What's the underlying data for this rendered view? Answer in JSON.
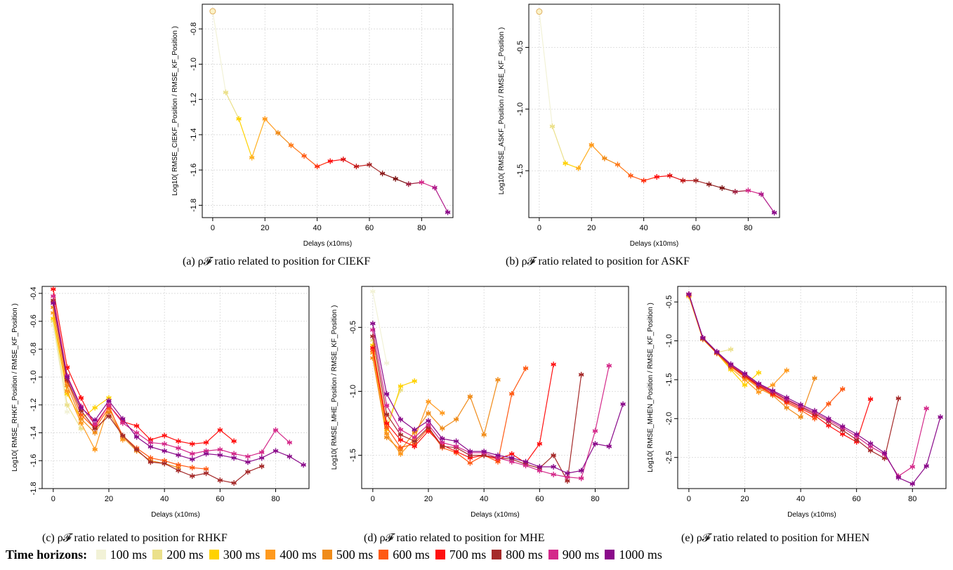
{
  "captions": {
    "a": "(a) ρ𝓕 ratio related to position for CIEKF",
    "b": "(b) ρ𝓕 ratio related to position for ASKF",
    "c": "(c) ρ𝓕 ratio related to position for RHKF",
    "d": "(d) ρ𝓕 ratio related to position for MHE",
    "e": "(e) ρ𝓕 ratio related to position for MHEN"
  },
  "legend": {
    "title": "Time horizons",
    "items": [
      {
        "label": "100 ms",
        "color": "#f2f2d7"
      },
      {
        "label": "200 ms",
        "color": "#ebe08a"
      },
      {
        "label": "300 ms",
        "color": "#ffd200"
      },
      {
        "label": "400 ms",
        "color": "#ff9a1e"
      },
      {
        "label": "500 ms",
        "color": "#f08c1a"
      },
      {
        "label": "600 ms",
        "color": "#ff5a14"
      },
      {
        "label": "700 ms",
        "color": "#ff1010"
      },
      {
        "label": "800 ms",
        "color": "#a52a2a"
      },
      {
        "label": "900 ms",
        "color": "#d42a8a"
      },
      {
        "label": "1000 ms",
        "color": "#8a0a8a"
      }
    ]
  },
  "chart_data": [
    {
      "id": "a",
      "type": "line",
      "xlabel": "Delays (x10ms)",
      "ylabel": "Log10( RMSE_CIEKF_Position / RMSE_KF_Position )",
      "xlim": [
        -4,
        92
      ],
      "ylim": [
        -1.87,
        -0.66
      ],
      "xticks": [
        0,
        20,
        40,
        60,
        80
      ],
      "yticks": [
        -0.8,
        -1.0,
        -1.2,
        -1.4,
        -1.6,
        -1.8
      ],
      "ytick_labels": [
        "-0.8",
        "-1.0",
        "-1.2",
        "-1.4",
        "-1.6",
        "-1.8"
      ],
      "grid": true,
      "gradient": true,
      "x": [
        0,
        5,
        10,
        15,
        20,
        25,
        30,
        35,
        40,
        45,
        50,
        55,
        60,
        65,
        70,
        75,
        80,
        85,
        90
      ],
      "values": [
        -0.7,
        -1.16,
        -1.31,
        -1.53,
        -1.31,
        -1.39,
        -1.46,
        -1.52,
        -1.58,
        -1.55,
        -1.54,
        -1.58,
        -1.57,
        -1.62,
        -1.65,
        -1.68,
        -1.67,
        -1.7,
        -1.84
      ]
    },
    {
      "id": "b",
      "type": "line",
      "xlabel": "Delays (x10ms)",
      "ylabel": "Log10( RMSE_ASKF_Position / RMSE_KF_Position )",
      "xlim": [
        -4,
        92
      ],
      "ylim": [
        -1.88,
        -0.15
      ],
      "xticks": [
        0,
        20,
        40,
        60,
        80
      ],
      "yticks": [
        -0.5,
        -1.0,
        -1.5
      ],
      "ytick_labels": [
        "-0.5",
        "-1.0",
        "-1.5"
      ],
      "grid": true,
      "gradient": true,
      "x": [
        0,
        5,
        10,
        15,
        20,
        25,
        30,
        35,
        40,
        45,
        50,
        55,
        60,
        65,
        70,
        75,
        80,
        85,
        90
      ],
      "values": [
        -0.21,
        -1.14,
        -1.44,
        -1.48,
        -1.29,
        -1.4,
        -1.45,
        -1.54,
        -1.58,
        -1.55,
        -1.54,
        -1.58,
        -1.58,
        -1.61,
        -1.64,
        -1.67,
        -1.66,
        -1.69,
        -1.84
      ]
    },
    {
      "id": "c",
      "type": "line",
      "xlabel": "Delays (x10ms)",
      "ylabel": "Log10( RMSE_RHKF_Position / RMSE_KF_Position )",
      "xlim": [
        -4,
        92
      ],
      "ylim": [
        -1.8,
        -0.35
      ],
      "xticks": [
        0,
        20,
        40,
        60,
        80
      ],
      "yticks": [
        -0.4,
        -0.6,
        -0.8,
        -1.0,
        -1.2,
        -1.4,
        -1.6,
        -1.8
      ],
      "ytick_labels": [
        "-0.4",
        "-0.6",
        "-0.8",
        "-1.0",
        "-1.2",
        "-1.4",
        "-1.6",
        "-1.8"
      ],
      "grid": true,
      "series": [
        {
          "name": "100 ms",
          "x": [
            0,
            5
          ],
          "values": [
            -0.63,
            -1.25
          ]
        },
        {
          "name": "200 ms",
          "x": [
            0,
            5,
            10
          ],
          "values": [
            -0.6,
            -1.2,
            -1.37
          ]
        },
        {
          "name": "300 ms",
          "x": [
            0,
            5,
            10,
            15,
            20
          ],
          "values": [
            -0.58,
            -1.12,
            -1.3,
            -1.22,
            -1.15
          ]
        },
        {
          "name": "400 ms",
          "x": [
            0,
            5,
            10,
            15,
            20,
            25
          ],
          "values": [
            -0.54,
            -1.1,
            -1.33,
            -1.52,
            -1.2,
            -1.45
          ]
        },
        {
          "name": "500 ms",
          "x": [
            0,
            5,
            10,
            15,
            20,
            25,
            30,
            35,
            40,
            45
          ],
          "values": [
            -0.5,
            -1.06,
            -1.3,
            -1.4,
            -1.25,
            -1.43,
            -1.53,
            -1.6,
            -1.62,
            -1.65
          ]
        },
        {
          "name": "600 ms",
          "x": [
            0,
            5,
            10,
            15,
            20,
            25,
            30,
            35,
            40,
            45,
            50,
            55
          ],
          "values": [
            -0.46,
            -1.03,
            -1.27,
            -1.37,
            -1.22,
            -1.42,
            -1.51,
            -1.58,
            -1.6,
            -1.63,
            -1.65,
            -1.66
          ]
        },
        {
          "name": "700 ms",
          "x": [
            0,
            5,
            10,
            15,
            20,
            25,
            30,
            35,
            40,
            45,
            50,
            55,
            60,
            65
          ],
          "values": [
            -0.37,
            -0.93,
            -1.15,
            -1.35,
            -1.2,
            -1.32,
            -1.35,
            -1.45,
            -1.42,
            -1.46,
            -1.48,
            -1.47,
            -1.38,
            -1.46
          ]
        },
        {
          "name": "800 ms",
          "x": [
            0,
            5,
            10,
            15,
            20,
            25,
            30,
            35,
            40,
            45,
            50,
            55,
            60,
            65,
            70,
            75
          ],
          "values": [
            -0.45,
            -1.02,
            -1.24,
            -1.37,
            -1.28,
            -1.42,
            -1.52,
            -1.61,
            -1.62,
            -1.67,
            -1.71,
            -1.69,
            -1.74,
            -1.76,
            -1.68,
            -1.64
          ]
        },
        {
          "name": "900 ms",
          "x": [
            0,
            5,
            10,
            15,
            20,
            25,
            30,
            35,
            40,
            45,
            50,
            55,
            60,
            65,
            70,
            75,
            80,
            85
          ],
          "values": [
            -0.42,
            -0.99,
            -1.21,
            -1.34,
            -1.2,
            -1.33,
            -1.4,
            -1.47,
            -1.48,
            -1.51,
            -1.55,
            -1.53,
            -1.52,
            -1.55,
            -1.57,
            -1.54,
            -1.38,
            -1.47
          ]
        },
        {
          "name": "1000 ms",
          "x": [
            0,
            5,
            10,
            15,
            20,
            25,
            30,
            35,
            40,
            45,
            50,
            55,
            60,
            65,
            70,
            75,
            80,
            85,
            90
          ],
          "values": [
            -0.47,
            -1.0,
            -1.22,
            -1.31,
            -1.17,
            -1.3,
            -1.43,
            -1.5,
            -1.53,
            -1.56,
            -1.59,
            -1.55,
            -1.56,
            -1.58,
            -1.61,
            -1.58,
            -1.53,
            -1.57,
            -1.63
          ]
        }
      ]
    },
    {
      "id": "d",
      "type": "line",
      "xlabel": "Delays (x10ms)",
      "ylabel": "Log10( RMSE_MHE_Position / RMSE_KF_Position )",
      "xlim": [
        -4,
        92
      ],
      "ylim": [
        -1.76,
        -0.18
      ],
      "xticks": [
        0,
        20,
        40,
        60,
        80
      ],
      "yticks": [
        -0.5,
        -1.0,
        -1.5
      ],
      "ytick_labels": [
        "-0.5",
        "-1.0",
        "-1.5"
      ],
      "grid": true,
      "series": [
        {
          "name": "100 ms",
          "x": [
            0,
            5
          ],
          "values": [
            -0.22,
            -0.78
          ]
        },
        {
          "name": "200 ms",
          "x": [
            0,
            5,
            10
          ],
          "values": [
            -0.6,
            -1.25,
            -0.99
          ]
        },
        {
          "name": "300 ms",
          "x": [
            0,
            5,
            10,
            15
          ],
          "values": [
            -0.64,
            -1.3,
            -0.96,
            -0.92
          ]
        },
        {
          "name": "400 ms",
          "x": [
            0,
            5,
            10,
            15,
            20,
            25
          ],
          "values": [
            -0.7,
            -1.33,
            -1.49,
            -1.37,
            -1.08,
            -1.17
          ]
        },
        {
          "name": "500 ms",
          "x": [
            0,
            5,
            10,
            15,
            20,
            25,
            30,
            35,
            40,
            45
          ],
          "values": [
            -0.74,
            -1.36,
            -1.46,
            -1.32,
            -1.17,
            -1.29,
            -1.22,
            -1.04,
            -1.34,
            -0.91
          ]
        },
        {
          "name": "600 ms",
          "x": [
            0,
            5,
            10,
            15,
            20,
            25,
            30,
            35,
            40,
            45,
            50,
            55
          ],
          "values": [
            -0.68,
            -1.28,
            -1.44,
            -1.41,
            -1.29,
            -1.44,
            -1.48,
            -1.56,
            -1.5,
            -1.55,
            -1.02,
            -0.82
          ]
        },
        {
          "name": "700 ms",
          "x": [
            0,
            5,
            10,
            15,
            20,
            25,
            30,
            35,
            40,
            45,
            50,
            55,
            60,
            65
          ],
          "values": [
            -0.66,
            -1.25,
            -1.38,
            -1.43,
            -1.31,
            -1.42,
            -1.47,
            -1.52,
            -1.5,
            -1.53,
            -1.49,
            -1.56,
            -1.41,
            -0.79
          ]
        },
        {
          "name": "800 ms",
          "x": [
            0,
            5,
            10,
            15,
            20,
            25,
            30,
            35,
            40,
            45,
            50,
            55,
            60,
            65,
            70,
            75
          ],
          "values": [
            -0.57,
            -1.18,
            -1.34,
            -1.39,
            -1.28,
            -1.43,
            -1.44,
            -1.5,
            -1.5,
            -1.52,
            -1.53,
            -1.57,
            -1.6,
            -1.5,
            -1.7,
            -0.87
          ]
        },
        {
          "name": "900 ms",
          "x": [
            0,
            5,
            10,
            15,
            20,
            25,
            30,
            35,
            40,
            45,
            50,
            55,
            60,
            65,
            70,
            75,
            80,
            85
          ],
          "values": [
            -0.52,
            -1.11,
            -1.3,
            -1.36,
            -1.26,
            -1.4,
            -1.43,
            -1.48,
            -1.48,
            -1.52,
            -1.55,
            -1.58,
            -1.62,
            -1.65,
            -1.67,
            -1.68,
            -1.31,
            -0.8
          ]
        },
        {
          "name": "1000 ms",
          "x": [
            0,
            5,
            10,
            15,
            20,
            25,
            30,
            35,
            40,
            45,
            50,
            55,
            60,
            65,
            70,
            75,
            80,
            85,
            90
          ],
          "values": [
            -0.47,
            -1.02,
            -1.22,
            -1.3,
            -1.23,
            -1.37,
            -1.39,
            -1.47,
            -1.47,
            -1.5,
            -1.52,
            -1.55,
            -1.59,
            -1.59,
            -1.64,
            -1.62,
            -1.41,
            -1.43,
            -1.1
          ]
        }
      ]
    },
    {
      "id": "e",
      "type": "line",
      "xlabel": "Delays (x10ms)",
      "ylabel": "Log10( RMSE_MHEN_Position / RMSE_KF_Position )",
      "xlim": [
        -4,
        92
      ],
      "ylim": [
        -2.9,
        -0.3
      ],
      "xticks": [
        0,
        20,
        40,
        60,
        80
      ],
      "yticks": [
        -0.5,
        -1.0,
        -1.5,
        -2.0,
        -2.5
      ],
      "ytick_labels": [
        "-0.5",
        "-1.0",
        "-1.5",
        "-2.0",
        "-2.5"
      ],
      "grid": true,
      "series": [
        {
          "name": "100 ms",
          "x": [
            0,
            5
          ],
          "values": [
            -0.44,
            -0.98
          ]
        },
        {
          "name": "200 ms",
          "x": [
            0,
            5,
            10,
            15
          ],
          "values": [
            -0.43,
            -0.98,
            -1.15,
            -1.11
          ]
        },
        {
          "name": "300 ms",
          "x": [
            0,
            5,
            10,
            15,
            20,
            25
          ],
          "values": [
            -0.42,
            -0.98,
            -1.16,
            -1.37,
            -1.57,
            -1.41
          ]
        },
        {
          "name": "400 ms",
          "x": [
            0,
            5,
            10,
            15,
            20,
            25,
            30,
            35
          ],
          "values": [
            -0.42,
            -0.98,
            -1.16,
            -1.35,
            -1.5,
            -1.66,
            -1.57,
            -1.38
          ]
        },
        {
          "name": "500 ms",
          "x": [
            0,
            5,
            10,
            15,
            20,
            25,
            30,
            35,
            40,
            45
          ],
          "values": [
            -0.41,
            -0.97,
            -1.16,
            -1.33,
            -1.47,
            -1.61,
            -1.7,
            -1.86,
            -1.98,
            -1.48
          ]
        },
        {
          "name": "600 ms",
          "x": [
            0,
            5,
            10,
            15,
            20,
            25,
            30,
            35,
            40,
            45,
            50,
            55
          ],
          "values": [
            -0.41,
            -0.97,
            -1.16,
            -1.33,
            -1.46,
            -1.59,
            -1.69,
            -1.8,
            -1.89,
            -2.0,
            -1.81,
            -1.62
          ]
        },
        {
          "name": "700 ms",
          "x": [
            0,
            5,
            10,
            15,
            20,
            25,
            30,
            35,
            40,
            45,
            50,
            55,
            60,
            65
          ],
          "values": [
            -0.4,
            -0.97,
            -1.15,
            -1.32,
            -1.45,
            -1.58,
            -1.68,
            -1.78,
            -1.87,
            -1.96,
            -2.09,
            -2.2,
            -2.3,
            -1.75
          ]
        },
        {
          "name": "800 ms",
          "x": [
            0,
            5,
            10,
            15,
            20,
            25,
            30,
            35,
            40,
            45,
            50,
            55,
            60,
            65,
            70,
            75
          ],
          "values": [
            -0.4,
            -0.97,
            -1.15,
            -1.32,
            -1.44,
            -1.57,
            -1.66,
            -1.76,
            -1.85,
            -1.94,
            -2.04,
            -2.15,
            -2.27,
            -2.41,
            -2.51,
            -1.74
          ]
        },
        {
          "name": "900 ms",
          "x": [
            0,
            5,
            10,
            15,
            20,
            25,
            30,
            35,
            40,
            45,
            50,
            55,
            60,
            65,
            70,
            75,
            80,
            85
          ],
          "values": [
            -0.4,
            -0.96,
            -1.14,
            -1.31,
            -1.43,
            -1.56,
            -1.65,
            -1.75,
            -1.84,
            -1.92,
            -2.02,
            -2.12,
            -2.23,
            -2.36,
            -2.46,
            -2.74,
            -2.62,
            -1.87
          ]
        },
        {
          "name": "1000 ms",
          "x": [
            0,
            5,
            10,
            15,
            20,
            25,
            30,
            35,
            40,
            45,
            50,
            55,
            60,
            65,
            70,
            75,
            80,
            85,
            90
          ],
          "values": [
            -0.4,
            -0.96,
            -1.14,
            -1.3,
            -1.42,
            -1.55,
            -1.64,
            -1.73,
            -1.82,
            -1.9,
            -2.0,
            -2.1,
            -2.2,
            -2.32,
            -2.44,
            -2.76,
            -2.84,
            -2.61,
            -1.98
          ]
        }
      ]
    }
  ]
}
